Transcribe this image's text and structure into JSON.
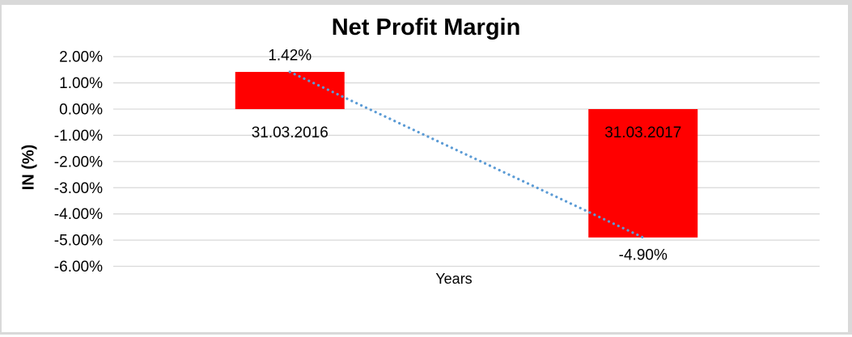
{
  "window": {
    "background": "#ffffff",
    "frame_color": "#d9d9d9"
  },
  "chart_data": {
    "type": "bar",
    "title": "Net Profit Margin",
    "xlabel": "Years",
    "ylabel": "IN (%)",
    "categories": [
      "31.03.2016",
      "31.03.2017"
    ],
    "values": [
      1.42,
      -4.9
    ],
    "value_labels": [
      "1.42%",
      "-4.90%"
    ],
    "category_label_color": "#000000",
    "bar_color": "#ff0000",
    "ylim": [
      -6,
      2
    ],
    "ytick_values": [
      2,
      1,
      0,
      -1,
      -2,
      -3,
      -4,
      -5,
      -6
    ],
    "ytick_labels": [
      "2.00%",
      "1.00%",
      "0.00%",
      "-1.00%",
      "-2.00%",
      "-3.00%",
      "-4.00%",
      "-5.00%",
      "-6.00%"
    ],
    "grid": true,
    "gridline_color": "#d9d9d9",
    "legend": "none",
    "trendline": {
      "type": "linear",
      "style": "dotted",
      "color": "#5b9bd5",
      "x": [
        0,
        1
      ],
      "y": [
        1.42,
        -4.9
      ]
    }
  }
}
